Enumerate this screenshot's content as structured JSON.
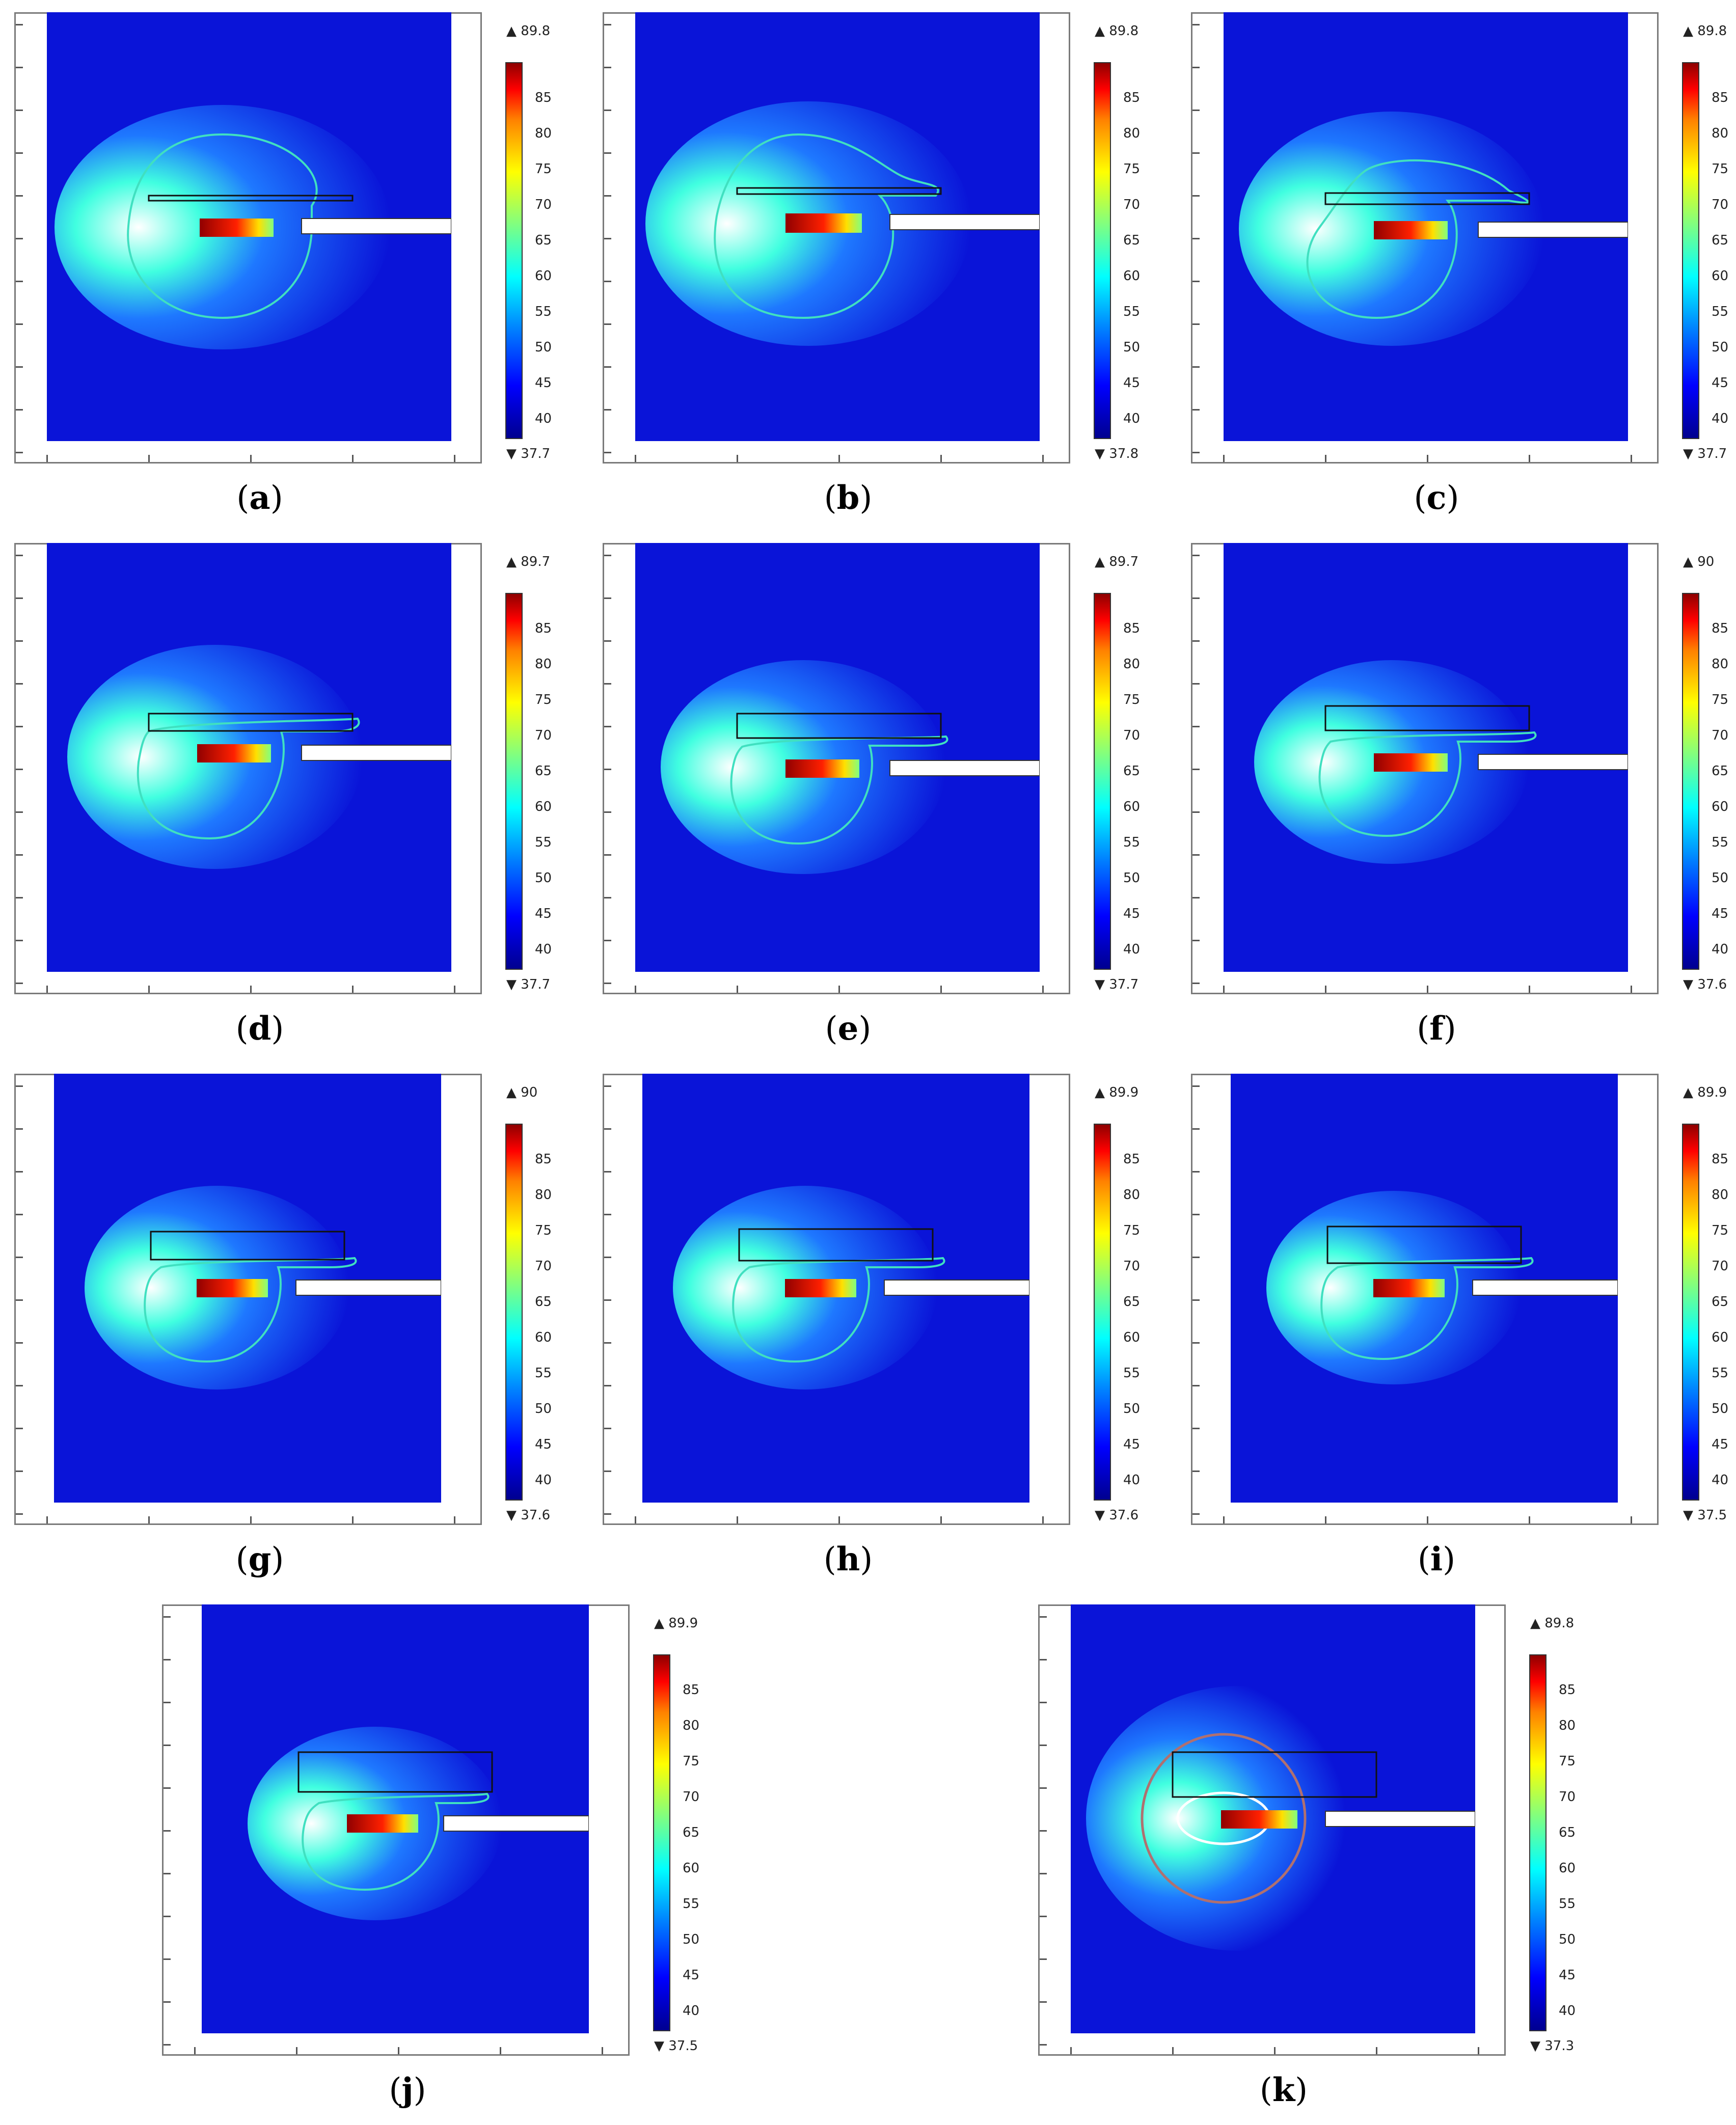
{
  "figure": {
    "colorbar_ticks": [
      "85",
      "80",
      "75",
      "70",
      "65",
      "60",
      "55",
      "50",
      "45",
      "40"
    ],
    "panels": [
      {
        "label": "a",
        "max": "▲ 89.8",
        "min": "▼ 37.7"
      },
      {
        "label": "b",
        "max": "▲ 89.8",
        "min": "▼ 37.8"
      },
      {
        "label": "c",
        "max": "▲ 89.8",
        "min": "▼ 37.7"
      },
      {
        "label": "d",
        "max": "▲ 89.7",
        "min": "▼ 37.7"
      },
      {
        "label": "e",
        "max": "▲ 89.7",
        "min": "▼ 37.7"
      },
      {
        "label": "f",
        "max": "▲ 90",
        "min": "▼ 37.6"
      },
      {
        "label": "g",
        "max": "▲ 90",
        "min": "▼ 37.6"
      },
      {
        "label": "h",
        "max": "▲ 89.9",
        "min": "▼ 37.6"
      },
      {
        "label": "i",
        "max": "▲ 89.9",
        "min": "▼ 37.5"
      },
      {
        "label": "j",
        "max": "▲ 89.9",
        "min": "▼ 37.5"
      },
      {
        "label": "k",
        "max": "▲ 89.8",
        "min": "▼ 37.3"
      }
    ],
    "colors": {
      "background_field": "#0a14d8",
      "hot_core": "#c00000",
      "isotherm": "#40e0c0",
      "isotherm_k": "#b07070"
    }
  }
}
